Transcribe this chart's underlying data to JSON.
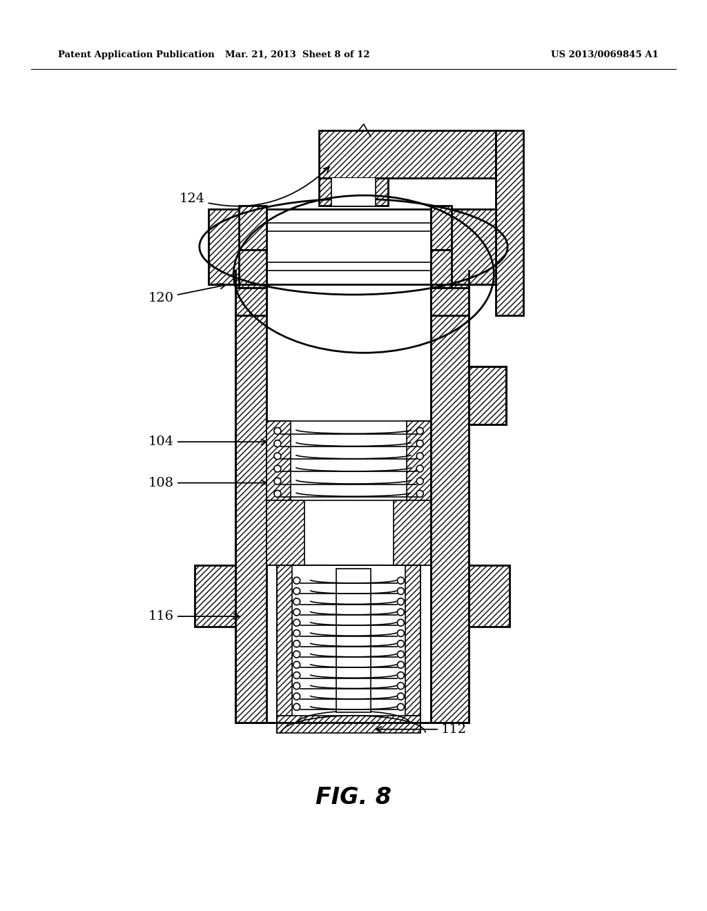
{
  "bg_color": "#ffffff",
  "header_left": "Patent Application Publication",
  "header_mid": "Mar. 21, 2013  Sheet 8 of 12",
  "header_right": "US 2013/0069845 A1",
  "fig_label": "FIG. 8",
  "line_color": "#000000",
  "hatch_color": "#000000"
}
